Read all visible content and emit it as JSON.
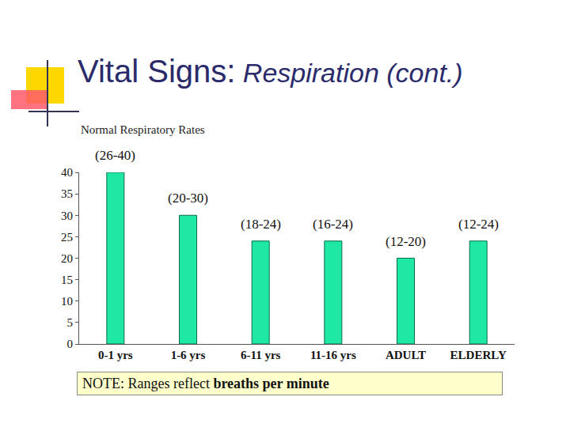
{
  "chart_data": {
    "type": "bar",
    "title": "Vital Signs: Respiration (cont.)",
    "subtitle": "Normal Respiratory Rates",
    "categories": [
      "0-1 yrs",
      "1-6 yrs",
      "6-11 yrs",
      "11-16 yrs",
      "ADULT",
      "ELDERLY"
    ],
    "values": [
      40,
      30,
      24,
      24,
      20,
      24
    ],
    "color": "#1ee8a4",
    "ylim": [
      0,
      40
    ],
    "yticks": [
      0,
      5,
      10,
      15,
      20,
      25,
      30,
      35,
      40
    ],
    "grid": false,
    "annotations": [
      {
        "x": "0-1 yrs",
        "text": "(26-40)"
      },
      {
        "x": "1-6 yrs",
        "text": "(20-30)"
      },
      {
        "x": "6-11 yrs",
        "text": "(18-24)"
      },
      {
        "x": "11-16 yrs",
        "text": "(16-24)"
      },
      {
        "x": "ADULT",
        "text": "(12-20)"
      },
      {
        "x": "ELDERLY",
        "text": "(12-24)"
      }
    ],
    "note": [
      "NOTE: Ranges reflect",
      "breaths per minute"
    ]
  }
}
